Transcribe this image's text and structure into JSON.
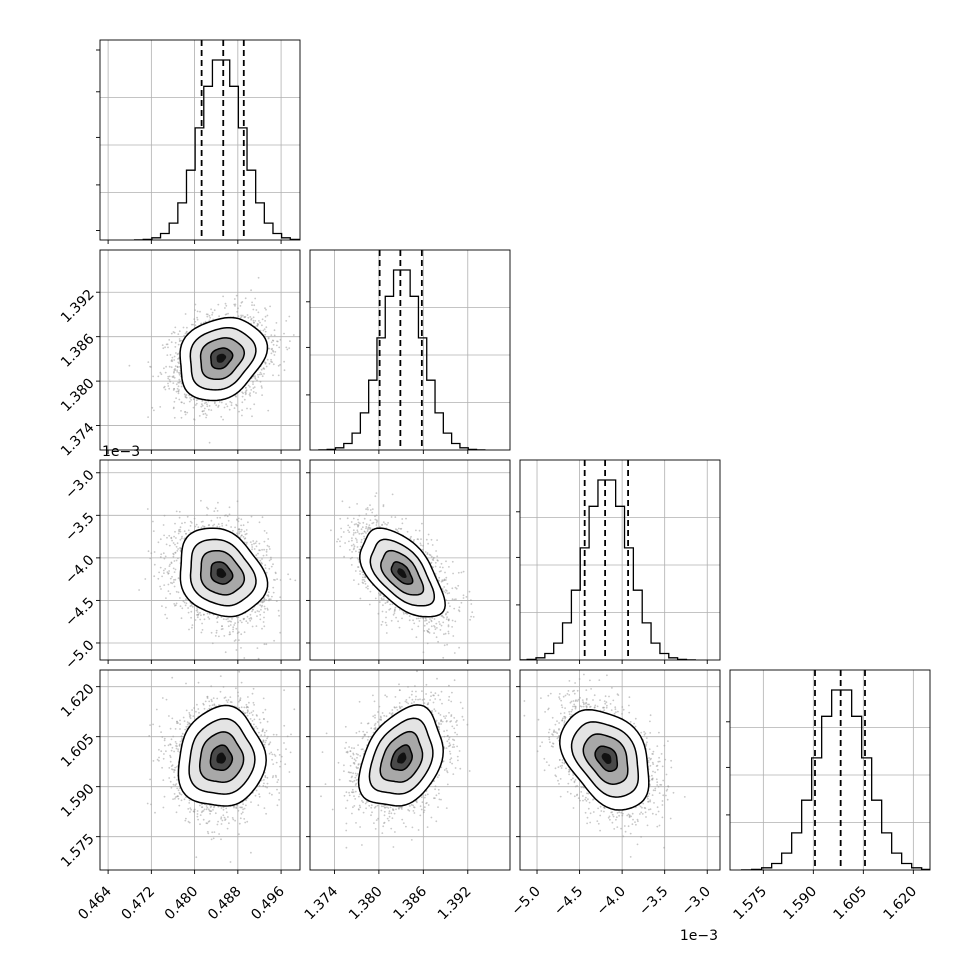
{
  "chart_data": {
    "type": "corner",
    "parameters": [
      {
        "range": [
          0.4625,
          0.4995
        ],
        "ticks": [
          0.464,
          0.472,
          0.48,
          0.488,
          0.496
        ],
        "tick_labels": [
          "0.464",
          "0.472",
          "0.480",
          "0.488",
          "0.496"
        ],
        "mean": 0.4849,
        "sigma": 0.004,
        "quantiles": [
          0.4813,
          0.4853,
          0.4891
        ],
        "offset_label": ""
      },
      {
        "range": [
          1.3707,
          1.3977
        ],
        "ticks": [
          1.374,
          1.38,
          1.386,
          1.392
        ],
        "tick_labels": [
          "1.374",
          "1.380",
          "1.386",
          "1.392"
        ],
        "mean": 1.3831,
        "sigma": 0.0028,
        "quantiles": [
          1.3801,
          1.3829,
          1.3858
        ],
        "offset_label": ""
      },
      {
        "range": [
          -5.2,
          -2.85
        ],
        "ticks": [
          -5.0,
          -4.5,
          -4.0,
          -3.5,
          -3.0
        ],
        "tick_labels": [
          "−5.0",
          "−4.5",
          "−4.0",
          "−3.5",
          "−3.0"
        ],
        "mean": -4.18,
        "sigma": 0.26,
        "quantiles": [
          -4.44,
          -4.2,
          -3.93
        ],
        "offset_label": "1e−3"
      },
      {
        "range": [
          1.565,
          1.625
        ],
        "ticks": [
          1.575,
          1.59,
          1.605,
          1.62
        ],
        "tick_labels": [
          "1.575",
          "1.590",
          "1.605",
          "1.620"
        ],
        "mean": 1.5985,
        "sigma": 0.0075,
        "quantiles": [
          1.5905,
          1.5982,
          1.6055
        ],
        "offset_label": ""
      }
    ],
    "correlations": [
      [
        1.0,
        0.2,
        -0.2,
        0.05
      ],
      [
        0.2,
        1.0,
        -0.55,
        0.3
      ],
      [
        -0.2,
        -0.55,
        1.0,
        -0.35
      ],
      [
        0.05,
        0.3,
        -0.35,
        1.0
      ]
    ],
    "histogram_bins": 20,
    "samples_per_panel": 2500,
    "contour_levels_sigma": [
      0.5,
      1.0,
      1.5,
      2.0
    ],
    "grid": true,
    "colors": {
      "line": "#000000",
      "points": "#9a9a9a",
      "grid": "#b0b0b0",
      "frame": "#000000"
    }
  }
}
